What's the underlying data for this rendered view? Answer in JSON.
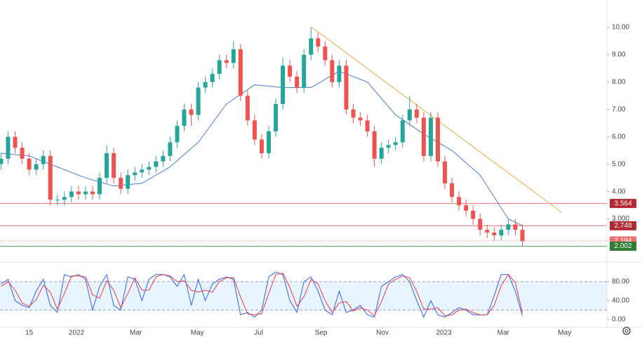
{
  "chart_data": [
    {
      "type": "candlestick",
      "x": [
        "2021-10-18",
        "2021-10-25",
        "2021-11-01",
        "2021-11-08",
        "2021-11-15",
        "2021-11-22",
        "2021-11-29",
        "2021-12-06",
        "2021-12-13",
        "2021-12-20",
        "2021-12-27",
        "2022-01-03",
        "2022-01-10",
        "2022-01-17",
        "2022-01-24",
        "2022-01-31",
        "2022-02-07",
        "2022-02-14",
        "2022-02-21",
        "2022-02-28",
        "2022-03-07",
        "2022-03-14",
        "2022-03-21",
        "2022-03-28",
        "2022-04-04",
        "2022-04-11",
        "2022-04-18",
        "2022-04-25",
        "2022-05-02",
        "2022-05-09",
        "2022-05-16",
        "2022-05-23",
        "2022-05-30",
        "2022-06-06",
        "2022-06-13",
        "2022-06-20",
        "2022-06-27",
        "2022-07-04",
        "2022-07-11",
        "2022-07-18",
        "2022-07-25",
        "2022-08-01",
        "2022-08-08",
        "2022-08-15",
        "2022-08-22",
        "2022-08-29",
        "2022-09-05",
        "2022-09-12",
        "2022-09-19",
        "2022-09-26",
        "2022-10-03",
        "2022-10-10",
        "2022-10-17",
        "2022-10-24",
        "2022-10-31",
        "2022-11-07",
        "2022-11-14",
        "2022-11-21",
        "2022-11-28",
        "2022-12-05",
        "2022-12-12",
        "2022-12-19",
        "2022-12-26",
        "2023-01-02",
        "2023-01-09",
        "2023-01-16",
        "2023-01-23",
        "2023-01-30",
        "2023-02-06",
        "2023-02-13",
        "2023-02-20",
        "2023-02-27",
        "2023-03-06",
        "2023-03-13",
        "2023-03-20"
      ],
      "open": [
        5.0,
        5.2,
        6.0,
        5.6,
        5.2,
        4.8,
        5.0,
        5.3,
        3.7,
        3.7,
        3.8,
        4.0,
        3.9,
        4.0,
        3.9,
        4.5,
        5.4,
        4.5,
        4.1,
        4.6,
        4.7,
        4.8,
        4.9,
        5.1,
        5.3,
        5.8,
        6.4,
        7.0,
        6.8,
        7.8,
        8.0,
        8.3,
        8.8,
        8.7,
        9.2,
        7.5,
        6.6,
        5.9,
        5.4,
        6.2,
        7.2,
        8.6,
        8.2,
        7.8,
        9.0,
        9.6,
        9.3,
        8.8,
        8.0,
        8.6,
        7.0,
        6.7,
        6.6,
        6.2,
        5.2,
        5.6,
        5.7,
        5.8,
        6.6,
        7.0,
        6.7,
        5.3,
        6.7,
        5.1,
        4.3,
        3.8,
        3.5,
        3.3,
        3.0,
        2.6,
        2.5,
        2.4,
        2.6,
        2.8,
        2.6
      ],
      "high": [
        5.4,
        6.2,
        6.2,
        5.8,
        5.4,
        5.2,
        5.5,
        5.5,
        3.9,
        4.0,
        4.2,
        4.2,
        4.2,
        4.2,
        4.7,
        5.7,
        5.6,
        4.7,
        4.8,
        4.9,
        5.0,
        5.1,
        5.3,
        5.5,
        6.0,
        6.6,
        7.2,
        7.2,
        8.0,
        8.2,
        8.5,
        9.0,
        9.0,
        9.5,
        9.4,
        7.7,
        6.8,
        6.1,
        6.4,
        7.4,
        8.9,
        8.8,
        8.4,
        9.2,
        10.0,
        9.8,
        9.5,
        9.0,
        8.8,
        8.8,
        7.2,
        6.9,
        6.8,
        6.4,
        5.8,
        5.9,
        6.0,
        6.8,
        7.5,
        7.2,
        6.9,
        6.9,
        6.9,
        5.3,
        4.5,
        4.0,
        3.7,
        3.5,
        3.2,
        2.8,
        2.7,
        2.8,
        3.0,
        3.0,
        2.8
      ],
      "low": [
        4.8,
        5.0,
        5.4,
        5.0,
        4.6,
        4.6,
        4.8,
        3.5,
        3.5,
        3.5,
        3.6,
        3.7,
        3.7,
        3.7,
        3.7,
        4.3,
        4.3,
        3.9,
        3.9,
        4.4,
        4.5,
        4.6,
        4.7,
        4.9,
        5.1,
        5.6,
        6.2,
        6.4,
        6.6,
        7.6,
        7.8,
        8.1,
        8.5,
        8.5,
        7.3,
        6.4,
        5.7,
        5.2,
        5.2,
        6.0,
        7.0,
        8.0,
        7.6,
        7.6,
        8.8,
        9.1,
        8.6,
        7.8,
        7.8,
        6.8,
        6.5,
        6.4,
        6.0,
        4.9,
        5.0,
        5.4,
        5.5,
        5.6,
        6.4,
        6.5,
        5.1,
        5.1,
        4.9,
        4.1,
        3.6,
        3.3,
        3.1,
        2.8,
        2.4,
        2.3,
        2.2,
        2.2,
        2.4,
        2.4,
        2.0
      ],
      "close": [
        5.2,
        6.0,
        5.6,
        5.2,
        4.8,
        5.0,
        5.3,
        3.7,
        3.7,
        3.8,
        4.0,
        3.9,
        4.0,
        3.9,
        4.5,
        5.4,
        4.5,
        4.1,
        4.6,
        4.7,
        4.8,
        4.9,
        5.1,
        5.3,
        5.8,
        6.4,
        7.0,
        6.8,
        7.8,
        8.0,
        8.3,
        8.8,
        8.7,
        9.2,
        7.5,
        6.6,
        5.9,
        5.4,
        6.2,
        7.2,
        8.6,
        8.2,
        7.8,
        9.0,
        9.6,
        9.3,
        8.8,
        8.0,
        8.6,
        7.0,
        6.7,
        6.6,
        6.2,
        5.2,
        5.6,
        5.7,
        5.8,
        6.6,
        7.0,
        6.7,
        5.3,
        6.7,
        5.1,
        4.3,
        3.8,
        3.5,
        3.3,
        3.0,
        2.6,
        2.5,
        2.4,
        2.6,
        2.8,
        2.6,
        2.19
      ],
      "up_color": "#26a69a",
      "down_color": "#ef5350",
      "moving_average": {
        "color": "#4a7fd6",
        "x": [
          "2021-10-18",
          "2021-11-15",
          "2021-12-13",
          "2022-01-10",
          "2022-02-07",
          "2022-03-07",
          "2022-04-04",
          "2022-05-02",
          "2022-05-30",
          "2022-06-27",
          "2022-07-25",
          "2022-08-22",
          "2022-09-19",
          "2022-10-17",
          "2022-11-14",
          "2022-12-12",
          "2023-01-09",
          "2023-02-06",
          "2023-03-06",
          "2023-03-20"
        ],
        "values": [
          5.4,
          5.3,
          4.9,
          4.5,
          4.2,
          4.3,
          4.9,
          5.8,
          7.2,
          7.9,
          7.8,
          7.8,
          8.4,
          8.0,
          6.8,
          6.1,
          5.5,
          4.6,
          3.0,
          2.75
        ]
      },
      "trend_line": {
        "color": "#f0b35a",
        "x": [
          "2022-08-22",
          "2023-04-28"
        ],
        "values": [
          10.02,
          3.24
        ]
      },
      "levels": [
        {
          "value": 3.564,
          "color": "#b22833",
          "line_color": "#e57373",
          "style": "solid"
        },
        {
          "value": 2.748,
          "color": "#b22833",
          "line_color": "#e57373",
          "style": "solid"
        },
        {
          "value": 2.194,
          "color": "#f26c6c",
          "line_color": "#f26c6c",
          "style": "dotted"
        },
        {
          "value": 2.002,
          "color": "#2e7d32",
          "line_color": "#4caf50",
          "style": "solid"
        }
      ],
      "xlim": [
        "2021-10-17",
        "2023-06-12"
      ],
      "ylim": [
        1.5,
        11.0
      ],
      "yticks": [
        {
          "value": 10,
          "label": "10.00"
        },
        {
          "value": 9,
          "label": "9.00"
        },
        {
          "value": 8,
          "label": "8.00"
        },
        {
          "value": 7,
          "label": "7.00"
        },
        {
          "value": 6,
          "label": "6.00"
        },
        {
          "value": 5,
          "label": "5.00"
        },
        {
          "value": 4,
          "label": "4.00"
        },
        {
          "value": 3,
          "label": "3.000"
        }
      ]
    },
    {
      "type": "line",
      "x": [
        "2021-10-18",
        "2021-10-25",
        "2021-11-01",
        "2021-11-08",
        "2021-11-15",
        "2021-11-22",
        "2021-11-29",
        "2021-12-06",
        "2021-12-13",
        "2021-12-20",
        "2021-12-27",
        "2022-01-03",
        "2022-01-10",
        "2022-01-17",
        "2022-01-24",
        "2022-01-31",
        "2022-02-07",
        "2022-02-14",
        "2022-02-21",
        "2022-02-28",
        "2022-03-07",
        "2022-03-14",
        "2022-03-21",
        "2022-03-28",
        "2022-04-04",
        "2022-04-11",
        "2022-04-18",
        "2022-04-25",
        "2022-05-02",
        "2022-05-09",
        "2022-05-16",
        "2022-05-23",
        "2022-05-30",
        "2022-06-06",
        "2022-06-13",
        "2022-06-20",
        "2022-06-27",
        "2022-07-04",
        "2022-07-11",
        "2022-07-18",
        "2022-07-25",
        "2022-08-01",
        "2022-08-08",
        "2022-08-15",
        "2022-08-22",
        "2022-08-29",
        "2022-09-05",
        "2022-09-12",
        "2022-09-19",
        "2022-09-26",
        "2022-10-03",
        "2022-10-10",
        "2022-10-17",
        "2022-10-24",
        "2022-10-31",
        "2022-11-07",
        "2022-11-14",
        "2022-11-21",
        "2022-11-28",
        "2022-12-05",
        "2022-12-12",
        "2022-12-19",
        "2022-12-26",
        "2023-01-02",
        "2023-01-09",
        "2023-01-16",
        "2023-01-23",
        "2023-01-30",
        "2023-02-06",
        "2023-02-13",
        "2023-02-20",
        "2023-02-27",
        "2023-03-06",
        "2023-03-13",
        "2023-03-20"
      ],
      "series": [
        {
          "color": "#2962ff",
          "values": [
            75,
            85,
            40,
            30,
            25,
            60,
            85,
            30,
            15,
            95,
            90,
            95,
            85,
            20,
            70,
            95,
            30,
            20,
            90,
            85,
            40,
            85,
            95,
            95,
            90,
            70,
            95,
            30,
            85,
            40,
            75,
            85,
            90,
            85,
            10,
            15,
            5,
            20,
            90,
            100,
            95,
            40,
            15,
            80,
            90,
            60,
            20,
            10,
            60,
            15,
            20,
            30,
            10,
            5,
            70,
            80,
            90,
            95,
            80,
            40,
            5,
            40,
            10,
            5,
            15,
            25,
            20,
            10,
            10,
            10,
            50,
            95,
            95,
            60,
            8
          ]
        },
        {
          "color": "#f23645",
          "values": [
            70,
            80,
            62,
            35,
            28,
            42,
            72,
            58,
            22,
            55,
            92,
            92,
            90,
            52,
            45,
            82,
            62,
            25,
            55,
            88,
            62,
            62,
            90,
            95,
            92,
            80,
            82,
            62,
            58,
            62,
            58,
            80,
            88,
            88,
            48,
            12,
            10,
            12,
            55,
            95,
            98,
            68,
            28,
            48,
            85,
            75,
            40,
            15,
            35,
            38,
            18,
            25,
            20,
            8,
            38,
            75,
            85,
            92,
            88,
            60,
            22,
            22,
            25,
            8,
            10,
            20,
            22,
            15,
            10,
            10,
            30,
            72,
            95,
            78,
            14
          ]
        }
      ],
      "band": [
        20,
        80
      ],
      "band_color": "#2196f3",
      "xlim": [
        "2021-10-17",
        "2023-06-12"
      ],
      "ylim": [
        -15,
        114
      ],
      "yticks": [
        {
          "value": 80,
          "label": "80.00"
        },
        {
          "value": 40,
          "label": "40.00"
        },
        {
          "value": 0,
          "label": "0.00"
        }
      ],
      "xticks": [
        {
          "value": "2021-11-15",
          "label": "15"
        },
        {
          "value": "2022-01-01",
          "label": "2022"
        },
        {
          "value": "2022-03-01",
          "label": "Mar"
        },
        {
          "value": "2022-05-01",
          "label": "May"
        },
        {
          "value": "2022-07-01",
          "label": "Jul"
        },
        {
          "value": "2022-09-01",
          "label": "Sep"
        },
        {
          "value": "2022-11-01",
          "label": "Nov"
        },
        {
          "value": "2023-01-01",
          "label": "2023"
        },
        {
          "value": "2023-03-01",
          "label": "Mar"
        },
        {
          "value": "2023-05-01",
          "label": "May"
        }
      ]
    }
  ]
}
